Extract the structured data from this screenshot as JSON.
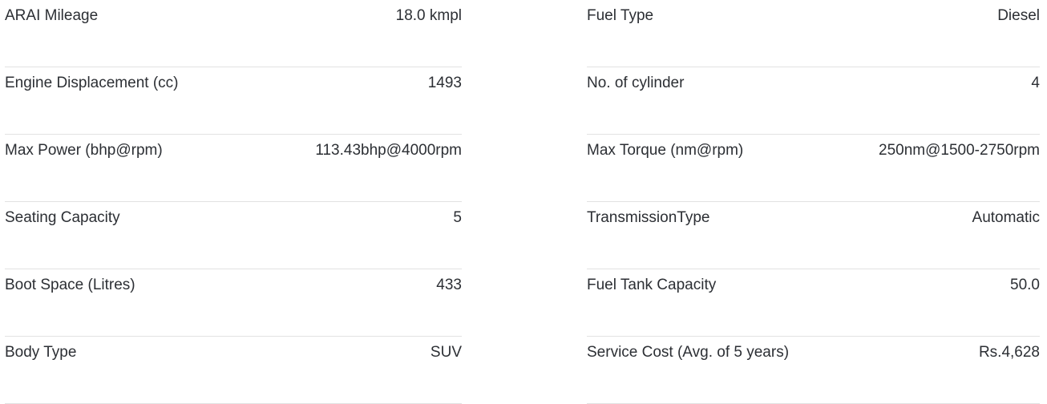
{
  "specs": {
    "left": [
      {
        "label": "ARAI Mileage",
        "value": "18.0 kmpl"
      },
      {
        "label": "Engine Displacement (cc)",
        "value": "1493"
      },
      {
        "label": "Max Power (bhp@rpm)",
        "value": "113.43bhp@4000rpm"
      },
      {
        "label": "Seating Capacity",
        "value": "5"
      },
      {
        "label": "Boot Space (Litres)",
        "value": "433"
      },
      {
        "label": "Body Type",
        "value": "SUV"
      }
    ],
    "right": [
      {
        "label": "Fuel Type",
        "value": "Diesel"
      },
      {
        "label": "No. of cylinder",
        "value": "4"
      },
      {
        "label": "Max Torque (nm@rpm)",
        "value": "250nm@1500-2750rpm"
      },
      {
        "label": "TransmissionType",
        "value": "Automatic"
      },
      {
        "label": "Fuel Tank Capacity",
        "value": "50.0"
      },
      {
        "label": "Service Cost (Avg. of 5 years)",
        "value": "Rs.4,628"
      }
    ]
  }
}
